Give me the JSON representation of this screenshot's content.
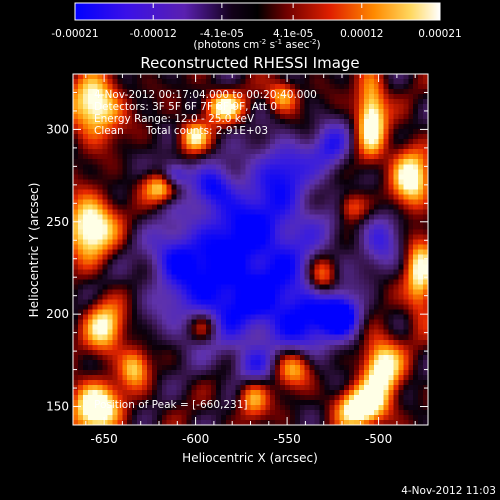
{
  "colorbar": {
    "tick_labels": [
      "-0.00021",
      "-0.00012",
      "-4.1e-05",
      "4.1e-05",
      "0.00012",
      "0.00021"
    ],
    "tick_values": [
      -0.00021,
      -0.00012,
      -4.1e-05,
      4.1e-05,
      0.00012,
      0.00021
    ],
    "range": [
      -0.00021,
      0.00021
    ],
    "units_base": "(photons cm",
    "units_exp1": "-2",
    "units_mid": " s",
    "units_exp2": "-1",
    "units_end": " asec",
    "units_exp3": "-2",
    "units_close": ")",
    "colors": [
      "#0000ff",
      "#5a1fd0",
      "#1a0010",
      "#000000",
      "#8a0000",
      "#ff3000",
      "#ff9a00",
      "#fff2a0",
      "#ffffff"
    ]
  },
  "title": "Reconstructed RHESSI Image",
  "annotations": {
    "time_range": "4-Nov-2012 00:17:04.000 to 00:20:40.000",
    "detectors": "Detectors: 3F 5F 6F 7F 8F 9F, Att 0",
    "energy_range": "Energy Range: 12.0 - 25.0 keV",
    "algorithm": "Clean",
    "total_counts": "Total counts: 2.91E+03",
    "peak": "Position of Peak = [-660,231]"
  },
  "axes": {
    "xlabel": "Heliocentric X (arcsec)",
    "ylabel": "Heliocentric Y (arcsec)",
    "xlim": [
      -667,
      -473
    ],
    "ylim": [
      140,
      330
    ],
    "x_ticks": [
      -650,
      -600,
      -550,
      -500
    ],
    "x_tick_labels": [
      "-650",
      "-600",
      "-550",
      "-500"
    ],
    "y_ticks": [
      150,
      200,
      250,
      300
    ],
    "y_tick_labels": [
      "150",
      "200",
      "250",
      "300"
    ]
  },
  "footer_timestamp": "4-Nov-2012 11:03"
}
